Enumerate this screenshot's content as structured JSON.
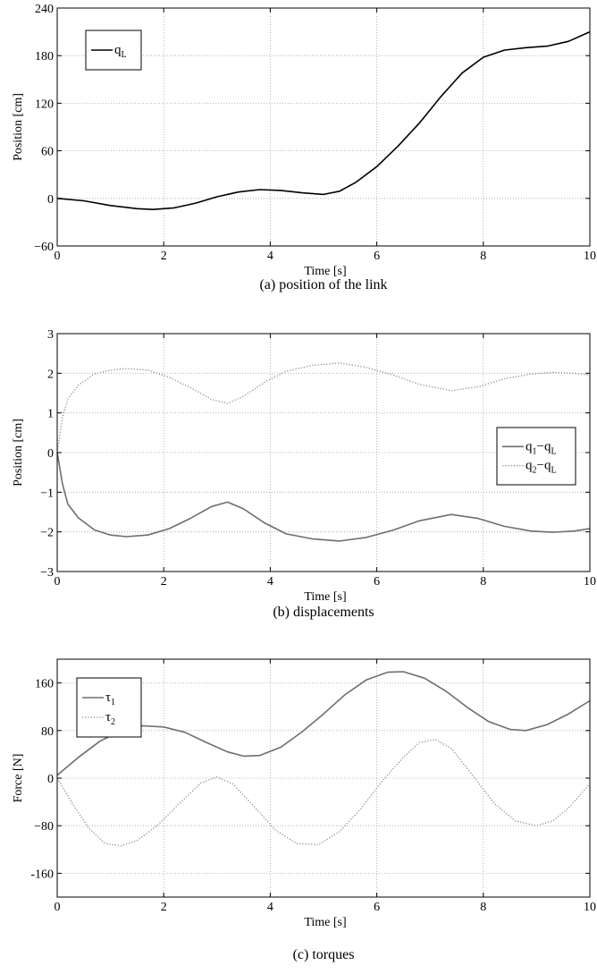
{
  "chart_data": [
    {
      "type": "line",
      "caption": "(a) position of the link",
      "xlabel": "Time [s]",
      "ylabel": "Position [cm]",
      "xlim": [
        0,
        10
      ],
      "ylim": [
        -60,
        240
      ],
      "xticks": [
        0,
        2,
        4,
        6,
        8,
        10
      ],
      "yticks": [
        -60,
        0,
        60,
        120,
        180,
        240
      ],
      "ytick_labels": [
        "−60",
        "0",
        "60",
        "120",
        "180",
        "240"
      ],
      "grid": true,
      "legend_position": "top-left",
      "series": [
        {
          "name_base": "q",
          "name_sub": "L",
          "color": "#000000",
          "style": "solid",
          "x": [
            0,
            0.5,
            1.0,
            1.5,
            1.8,
            2.2,
            2.6,
            3.0,
            3.4,
            3.8,
            4.2,
            4.6,
            5.0,
            5.3,
            5.6,
            6.0,
            6.4,
            6.8,
            7.2,
            7.6,
            8.0,
            8.4,
            8.8,
            9.2,
            9.6,
            10.0
          ],
          "y": [
            0,
            -3,
            -9,
            -13,
            -14,
            -12,
            -6,
            2,
            8,
            11,
            10,
            7,
            5,
            9,
            20,
            40,
            66,
            95,
            128,
            158,
            178,
            187,
            190,
            192,
            198,
            210
          ]
        }
      ]
    },
    {
      "type": "line",
      "caption": "(b) displacements",
      "xlabel": "Time [s]",
      "ylabel": "Position [cm]",
      "xlim": [
        0,
        10
      ],
      "ylim": [
        -3,
        3
      ],
      "xticks": [
        0,
        2,
        4,
        6,
        8,
        10
      ],
      "yticks": [
        -3,
        -2,
        -1,
        0,
        1,
        2,
        3
      ],
      "ytick_labels": [
        "−3",
        "−2",
        "−1",
        "0",
        "1",
        "2",
        "3"
      ],
      "grid": true,
      "legend_position": "right",
      "series": [
        {
          "name_base": "q",
          "name_sub": "1",
          "name_mid": "−q",
          "name_sub2": "L",
          "color": "#6e6e6e",
          "style": "solid",
          "x": [
            0,
            0.1,
            0.2,
            0.4,
            0.7,
            1.0,
            1.3,
            1.7,
            2.1,
            2.5,
            2.9,
            3.2,
            3.5,
            3.9,
            4.3,
            4.8,
            5.3,
            5.8,
            6.3,
            6.8,
            7.4,
            7.9,
            8.4,
            8.9,
            9.3,
            9.7,
            10.0
          ],
          "y": [
            0,
            -0.8,
            -1.3,
            -1.65,
            -1.95,
            -2.08,
            -2.12,
            -2.08,
            -1.92,
            -1.66,
            -1.36,
            -1.25,
            -1.42,
            -1.78,
            -2.05,
            -2.18,
            -2.23,
            -2.14,
            -1.96,
            -1.72,
            -1.56,
            -1.66,
            -1.86,
            -1.98,
            -2.01,
            -1.98,
            -1.92
          ]
        },
        {
          "name_base": "q",
          "name_sub": "2",
          "name_mid": "−q",
          "name_sub2": "L",
          "color": "#8a8a8a",
          "style": "dotted",
          "x": [
            0,
            0.1,
            0.2,
            0.4,
            0.7,
            1.0,
            1.3,
            1.7,
            2.1,
            2.5,
            2.9,
            3.2,
            3.5,
            3.9,
            4.3,
            4.8,
            5.3,
            5.8,
            6.3,
            6.8,
            7.4,
            7.9,
            8.4,
            8.9,
            9.3,
            9.7,
            10.0
          ],
          "y": [
            0,
            0.9,
            1.35,
            1.7,
            1.98,
            2.08,
            2.12,
            2.08,
            1.9,
            1.64,
            1.34,
            1.24,
            1.42,
            1.78,
            2.05,
            2.2,
            2.26,
            2.15,
            1.96,
            1.72,
            1.56,
            1.66,
            1.86,
            1.98,
            2.02,
            2.0,
            1.95
          ]
        }
      ]
    },
    {
      "type": "line",
      "caption": "(c) torques",
      "xlabel": "Time [s]",
      "ylabel": "Force [N]",
      "xlim": [
        0,
        10
      ],
      "ylim": [
        -200,
        200
      ],
      "xticks": [
        0,
        2,
        4,
        6,
        8,
        10
      ],
      "yticks": [
        -160,
        -80,
        0,
        80,
        160
      ],
      "ytick_labels": [
        "-160",
        "−80",
        "0",
        "80",
        "160"
      ],
      "grid": true,
      "legend_position": "top-left",
      "series": [
        {
          "name_base": "τ",
          "name_sub": "1",
          "color": "#6e6e6e",
          "style": "solid",
          "x": [
            0,
            0.4,
            0.8,
            1.2,
            1.6,
            2.0,
            2.4,
            2.8,
            3.2,
            3.5,
            3.8,
            4.2,
            4.6,
            5.0,
            5.4,
            5.8,
            6.2,
            6.5,
            6.9,
            7.3,
            7.7,
            8.1,
            8.5,
            8.8,
            9.2,
            9.6,
            10.0
          ],
          "y": [
            5,
            35,
            62,
            80,
            88,
            86,
            77,
            60,
            44,
            37,
            38,
            52,
            78,
            108,
            140,
            165,
            178,
            179,
            168,
            146,
            119,
            95,
            82,
            80,
            90,
            108,
            130
          ]
        },
        {
          "name_base": "τ",
          "name_sub": "2",
          "color": "#8a8a8a",
          "style": "dotted",
          "x": [
            0,
            0.3,
            0.6,
            0.9,
            1.2,
            1.5,
            1.9,
            2.3,
            2.7,
            3.0,
            3.3,
            3.7,
            4.1,
            4.5,
            4.9,
            5.3,
            5.7,
            6.1,
            6.5,
            6.8,
            7.1,
            7.4,
            7.8,
            8.2,
            8.6,
            9.0,
            9.3,
            9.6,
            10.0
          ],
          "y": [
            0,
            -45,
            -85,
            -110,
            -114,
            -105,
            -78,
            -42,
            -8,
            2,
            -10,
            -48,
            -88,
            -110,
            -112,
            -90,
            -52,
            -5,
            35,
            60,
            65,
            50,
            5,
            -42,
            -72,
            -80,
            -72,
            -50,
            -10
          ]
        }
      ]
    }
  ]
}
